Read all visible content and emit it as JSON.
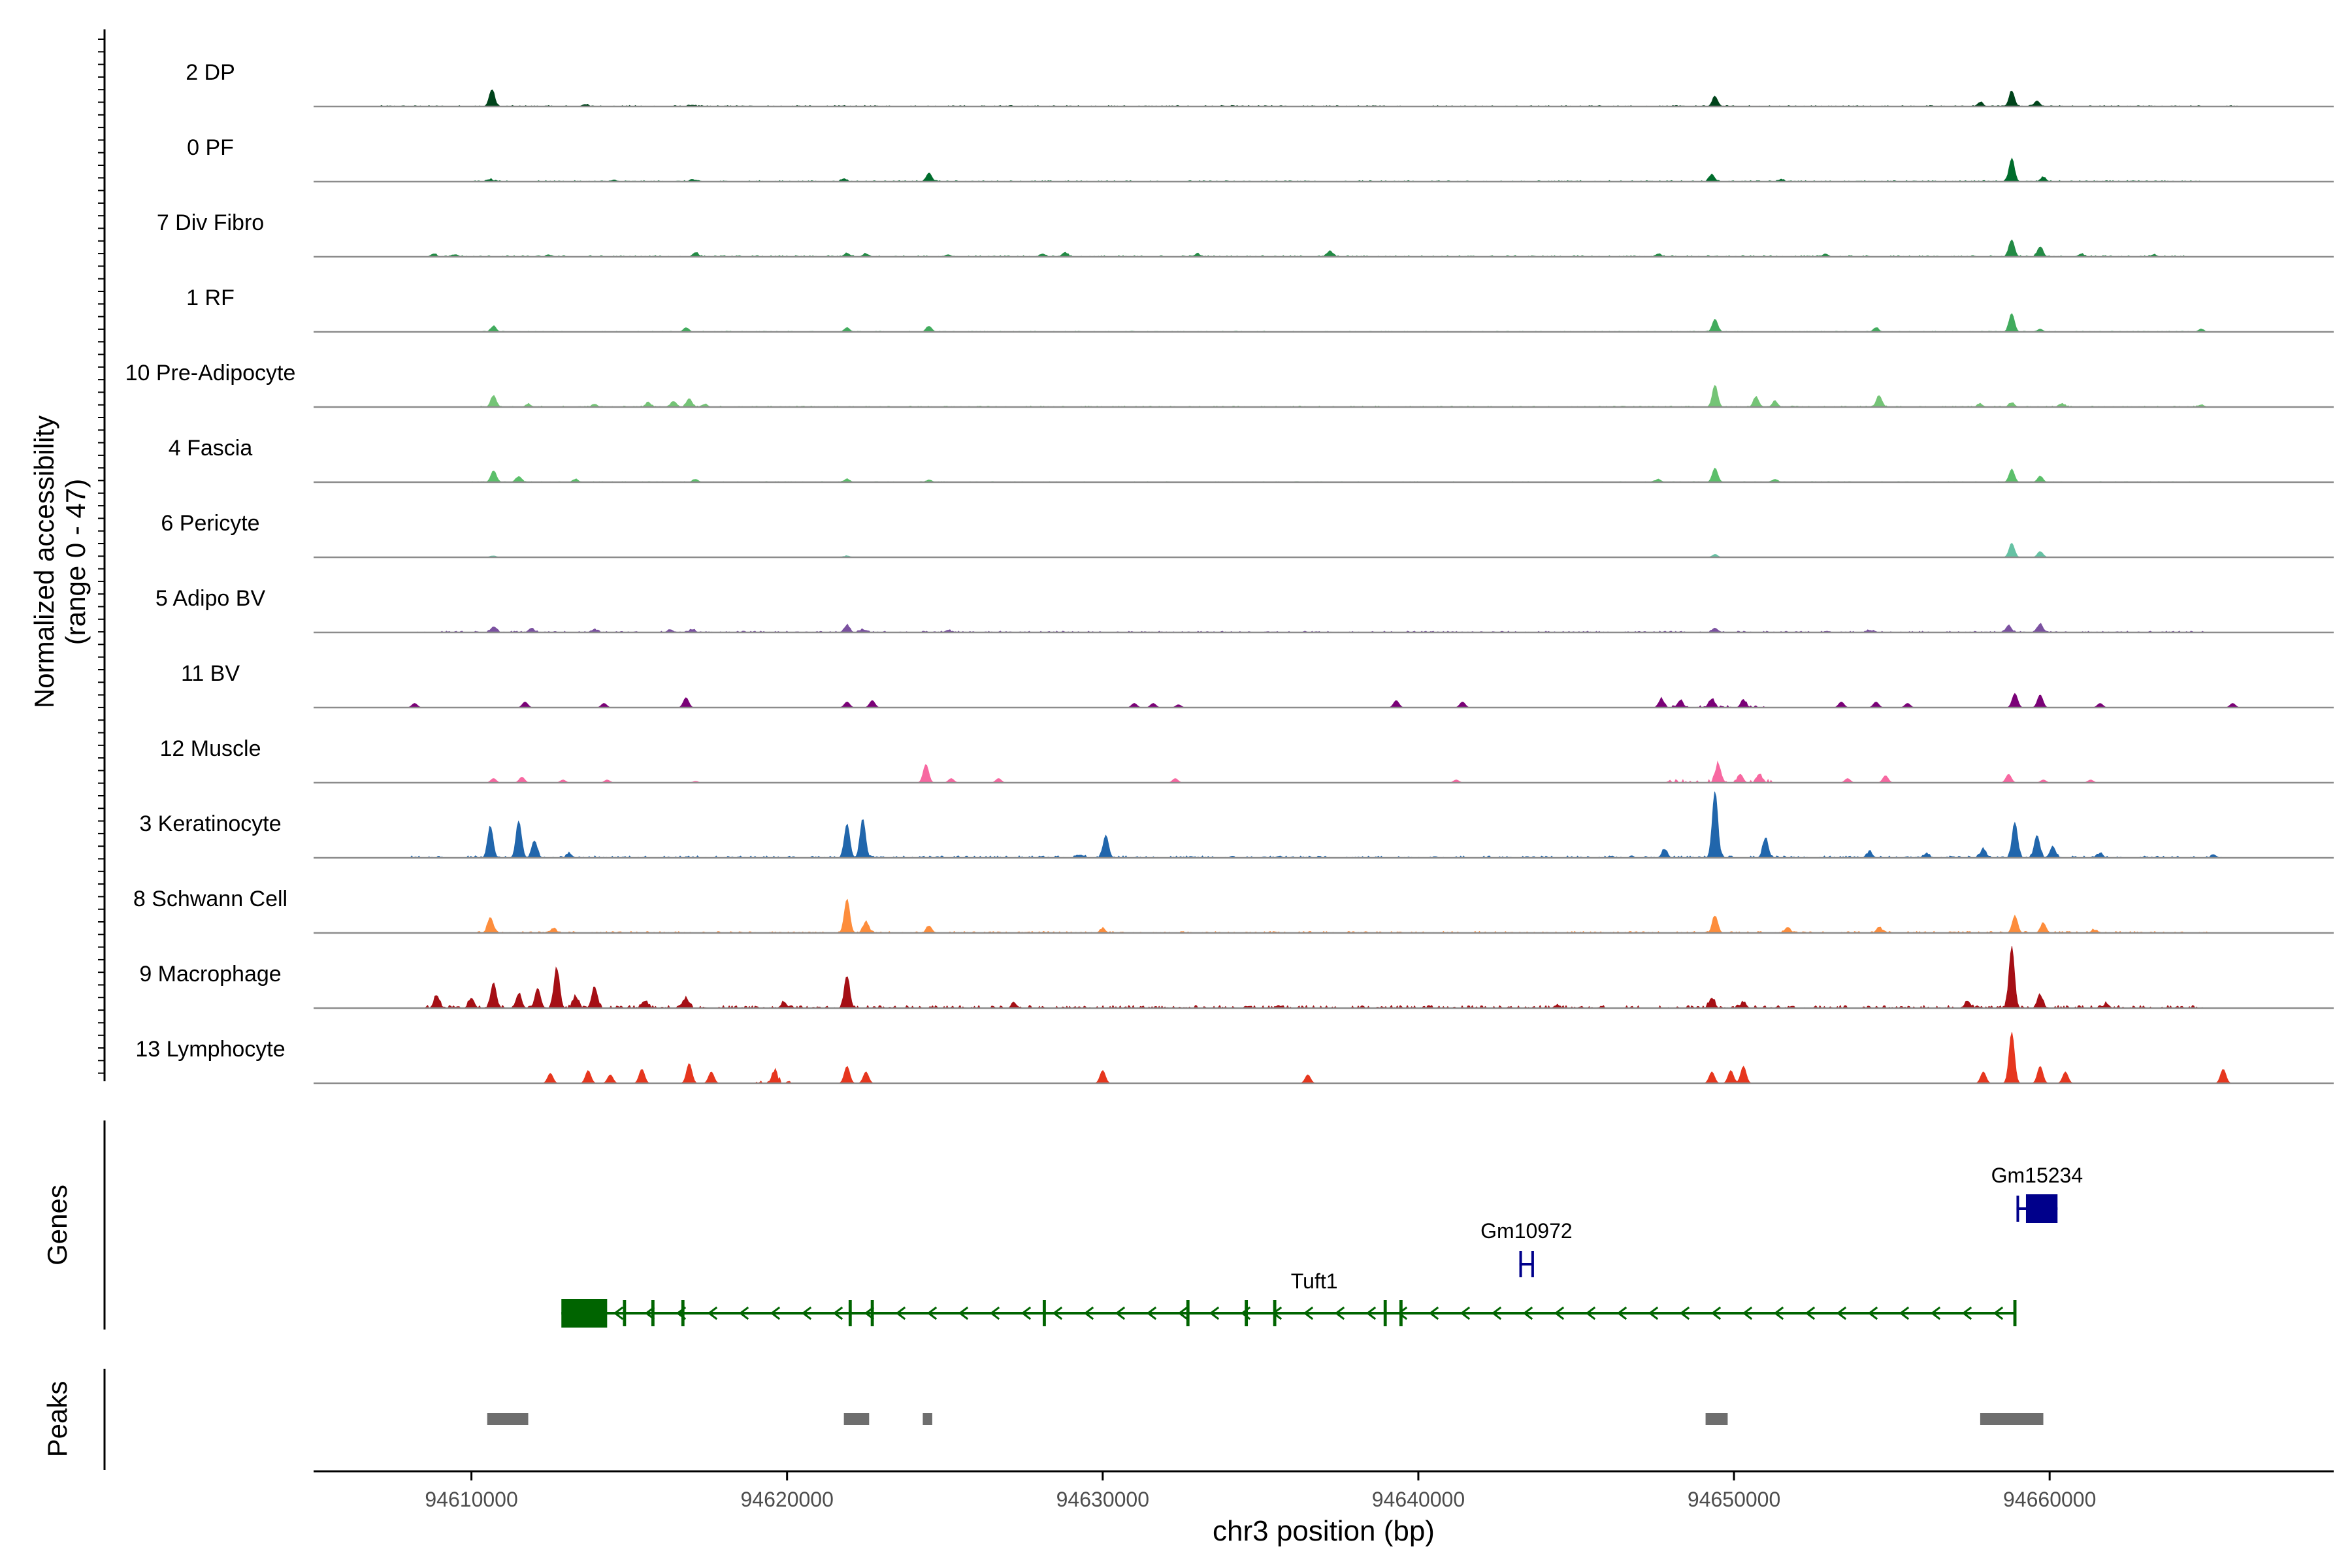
{
  "chart_data": {
    "type": "area",
    "title": "",
    "ylabel_line1": "Normalized accessibility",
    "ylabel_line2": "(range 0 - 47)",
    "xlabel": "chr3 position (bp)",
    "xlim": [
      94605000,
      94669000
    ],
    "ylim": [
      0,
      47
    ],
    "x_ticks": [
      {
        "value": 94610000,
        "label": "94610000"
      },
      {
        "value": 94620000,
        "label": "94620000"
      },
      {
        "value": 94630000,
        "label": "94630000"
      },
      {
        "value": 94640000,
        "label": "94640000"
      },
      {
        "value": 94650000,
        "label": "94650000"
      },
      {
        "value": 94660000,
        "label": "94660000"
      }
    ],
    "tracks": [
      {
        "label": "2 DP",
        "color": "#00441b",
        "peaks": [
          [
            94610650,
            12
          ],
          [
            94613600,
            1.5
          ],
          [
            94617000,
            1
          ],
          [
            94649400,
            7
          ],
          [
            94657800,
            3
          ],
          [
            94658800,
            11
          ],
          [
            94659600,
            4
          ]
        ],
        "noise": [
          94607000,
          94666000
        ],
        "noise_level": 0.8
      },
      {
        "label": "0 PF",
        "color": "#006d2c",
        "peaks": [
          [
            94610600,
            1.5
          ],
          [
            94614500,
            1
          ],
          [
            94617000,
            1.5
          ],
          [
            94621800,
            2
          ],
          [
            94624500,
            6
          ],
          [
            94649300,
            5
          ],
          [
            94651500,
            1.5
          ],
          [
            94658800,
            16
          ],
          [
            94659800,
            3
          ]
        ],
        "noise": [
          94610000,
          94665000
        ],
        "noise_level": 0.8
      },
      {
        "label": "7 Div Fibro",
        "color": "#238b45",
        "peaks": [
          [
            94608800,
            2
          ],
          [
            94609500,
            1.5
          ],
          [
            94612500,
            1
          ],
          [
            94617100,
            3
          ],
          [
            94621900,
            2.5
          ],
          [
            94622500,
            2
          ],
          [
            94625100,
            1.5
          ],
          [
            94628100,
            2
          ],
          [
            94628800,
            3
          ],
          [
            94633000,
            2
          ],
          [
            94637200,
            4
          ],
          [
            94647600,
            2
          ],
          [
            94652900,
            2
          ],
          [
            94658800,
            12
          ],
          [
            94659700,
            7
          ],
          [
            94661000,
            2
          ],
          [
            94663300,
            1.5
          ]
        ],
        "noise": [
          94608500,
          94664500
        ],
        "noise_level": 0.9
      },
      {
        "label": "1 RF",
        "color": "#41ab5d",
        "peaks": [
          [
            94610700,
            4
          ],
          [
            94616800,
            3
          ],
          [
            94621900,
            3
          ],
          [
            94624500,
            4
          ],
          [
            94649400,
            9
          ],
          [
            94654500,
            3
          ],
          [
            94658800,
            13
          ],
          [
            94659700,
            2
          ],
          [
            94664800,
            2
          ]
        ],
        "noise": [
          94610000,
          94665000
        ],
        "noise_level": 0.6
      },
      {
        "label": "10 Pre-Adipocyte",
        "color": "#74c476",
        "peaks": [
          [
            94610700,
            8
          ],
          [
            94611800,
            2
          ],
          [
            94615600,
            3
          ],
          [
            94616400,
            4
          ],
          [
            94616900,
            6
          ],
          [
            94617400,
            2
          ],
          [
            94613900,
            2
          ],
          [
            94649400,
            15
          ],
          [
            94650700,
            7
          ],
          [
            94651300,
            4
          ],
          [
            94654600,
            8
          ],
          [
            94657800,
            2
          ],
          [
            94658800,
            3
          ],
          [
            94660400,
            2
          ],
          [
            94664800,
            1.5
          ]
        ],
        "noise": [
          94610000,
          94665000
        ],
        "noise_level": 0.8
      },
      {
        "label": "4 Fascia",
        "color": "#5bbf6a",
        "peaks": [
          [
            94610700,
            8
          ],
          [
            94611500,
            4
          ],
          [
            94613300,
            2
          ],
          [
            94617100,
            2
          ],
          [
            94621900,
            2
          ],
          [
            94624500,
            1.5
          ],
          [
            94647600,
            2
          ],
          [
            94649400,
            10
          ],
          [
            94651300,
            2
          ],
          [
            94658800,
            9
          ],
          [
            94659700,
            4
          ]
        ],
        "noise": [
          94610000,
          94665000
        ],
        "noise_level": 0.5
      },
      {
        "label": "6 Pericyte",
        "color": "#66c2a4",
        "peaks": [
          [
            94610700,
            1
          ],
          [
            94621900,
            1
          ],
          [
            94649400,
            2
          ],
          [
            94658800,
            10
          ],
          [
            94659700,
            4
          ]
        ],
        "noise": [
          94610000,
          94665000
        ],
        "noise_level": 0.3
      },
      {
        "label": "5 Adipo BV",
        "color": "#7b51a0",
        "peaks": [
          [
            94610700,
            4
          ],
          [
            94611900,
            3
          ],
          [
            94613900,
            2
          ],
          [
            94616300,
            2
          ],
          [
            94617000,
            2
          ],
          [
            94621900,
            5
          ],
          [
            94622400,
            2
          ],
          [
            94625100,
            1.5
          ],
          [
            94649400,
            3
          ],
          [
            94654300,
            1.5
          ],
          [
            94658700,
            5
          ],
          [
            94659700,
            6
          ]
        ],
        "noise": [
          94608000,
          94665000
        ],
        "noise_level": 1.0
      },
      {
        "label": "11 BV",
        "color": "#7a0177",
        "peaks": [
          [
            94608200,
            3
          ],
          [
            94611700,
            4
          ],
          [
            94614200,
            3
          ],
          [
            94616800,
            7
          ],
          [
            94621900,
            4
          ],
          [
            94622700,
            5
          ],
          [
            94631000,
            3
          ],
          [
            94631600,
            3
          ],
          [
            94632400,
            2
          ],
          [
            94639300,
            5
          ],
          [
            94641400,
            4
          ],
          [
            94647700,
            6
          ],
          [
            94648300,
            5
          ],
          [
            94649300,
            6
          ],
          [
            94650300,
            5
          ],
          [
            94653400,
            4
          ],
          [
            94654500,
            4
          ],
          [
            94655500,
            3
          ],
          [
            94658900,
            10
          ],
          [
            94659700,
            9
          ],
          [
            94661600,
            3
          ],
          [
            94665800,
            3
          ]
        ],
        "noise": [
          94647500,
          94651000
        ],
        "noise_level": 1.5
      },
      {
        "label": "12 Muscle",
        "color": "#f768a1",
        "peaks": [
          [
            94610700,
            3
          ],
          [
            94611600,
            4
          ],
          [
            94612900,
            2
          ],
          [
            94614300,
            2
          ],
          [
            94617100,
            1
          ],
          [
            94624400,
            13
          ],
          [
            94625200,
            3
          ],
          [
            94626700,
            3
          ],
          [
            94632300,
            3
          ],
          [
            94641200,
            2
          ],
          [
            94649500,
            13
          ],
          [
            94650200,
            6
          ],
          [
            94650800,
            6
          ],
          [
            94653600,
            3
          ],
          [
            94654800,
            5
          ],
          [
            94658700,
            6
          ],
          [
            94659800,
            2
          ],
          [
            94661300,
            2
          ]
        ],
        "noise": [
          94647800,
          94651200
        ],
        "noise_level": 2.5
      },
      {
        "label": "3 Keratinocyte",
        "color": "#2166ac",
        "peaks": [
          [
            94610600,
            22
          ],
          [
            94611500,
            26
          ],
          [
            94612000,
            12
          ],
          [
            94613100,
            3
          ],
          [
            94621900,
            24
          ],
          [
            94622400,
            27
          ],
          [
            94629300,
            2
          ],
          [
            94630100,
            16
          ],
          [
            94647800,
            6
          ],
          [
            94649400,
            47
          ],
          [
            94651000,
            14
          ],
          [
            94654300,
            4
          ],
          [
            94656100,
            3
          ],
          [
            94657900,
            6
          ],
          [
            94658900,
            25
          ],
          [
            94659600,
            16
          ],
          [
            94660100,
            8
          ],
          [
            94661600,
            3
          ],
          [
            94665200,
            2
          ]
        ],
        "noise": [
          94608000,
          94666000
        ],
        "noise_level": 1.5
      },
      {
        "label": "8 Schwann Cell",
        "color": "#fd8d3c",
        "peaks": [
          [
            94610600,
            11
          ],
          [
            94612600,
            3
          ],
          [
            94621900,
            24
          ],
          [
            94622500,
            8
          ],
          [
            94624500,
            5
          ],
          [
            94630000,
            3
          ],
          [
            94649400,
            12
          ],
          [
            94651700,
            4
          ],
          [
            94654600,
            4
          ],
          [
            94658900,
            12
          ],
          [
            94659800,
            7
          ],
          [
            94661400,
            2
          ]
        ],
        "noise": [
          94610000,
          94665000
        ],
        "noise_level": 1.2
      },
      {
        "label": "9 Macrophage",
        "color": "#a50f15",
        "peaks": [
          [
            94608900,
            9
          ],
          [
            94610000,
            7
          ],
          [
            94610700,
            18
          ],
          [
            94611500,
            10
          ],
          [
            94612100,
            14
          ],
          [
            94612700,
            28
          ],
          [
            94613300,
            8
          ],
          [
            94613900,
            15
          ],
          [
            94615500,
            5
          ],
          [
            94616800,
            7
          ],
          [
            94619900,
            4
          ],
          [
            94621900,
            22
          ],
          [
            94627200,
            3
          ],
          [
            94644400,
            2
          ],
          [
            94649300,
            7
          ],
          [
            94650300,
            4
          ],
          [
            94657400,
            5
          ],
          [
            94658800,
            43
          ],
          [
            94659700,
            9
          ],
          [
            94661800,
            3
          ]
        ],
        "noise": [
          94608500,
          94665000
        ],
        "noise_level": 2.0
      },
      {
        "label": "13 Lymphocyte",
        "color": "#e6361e",
        "peaks": [
          [
            94612500,
            7
          ],
          [
            94613700,
            9
          ],
          [
            94614400,
            6
          ],
          [
            94615400,
            10
          ],
          [
            94616900,
            14
          ],
          [
            94617600,
            8
          ],
          [
            94619600,
            8
          ],
          [
            94621900,
            12
          ],
          [
            94622500,
            8
          ],
          [
            94630000,
            9
          ],
          [
            94636500,
            6
          ],
          [
            94649300,
            8
          ],
          [
            94649900,
            9
          ],
          [
            94650300,
            12
          ],
          [
            94657900,
            8
          ],
          [
            94658800,
            36
          ],
          [
            94659700,
            12
          ],
          [
            94660500,
            8
          ],
          [
            94665500,
            10
          ]
        ],
        "noise": [
          94618900,
          94620200
        ],
        "noise_level": 3.0
      }
    ],
    "genes_label": "Genes",
    "genes": [
      {
        "name": "Tuft1",
        "strand": "-",
        "start": 94612850,
        "end": 94658900,
        "color": "#006400",
        "exons": [
          [
            94612850,
            94614300
          ],
          [
            94614800,
            94614900
          ],
          [
            94615700,
            94615800
          ],
          [
            94616650,
            94616750
          ],
          [
            94621950,
            94622050
          ],
          [
            94622650,
            94622750
          ],
          [
            94628100,
            94628200
          ],
          [
            94632650,
            94632750
          ],
          [
            94634500,
            94634600
          ],
          [
            94635400,
            94635500
          ],
          [
            94638900,
            94639000
          ],
          [
            94639400,
            94639500
          ],
          [
            94658850,
            94658950
          ]
        ]
      },
      {
        "name": "Gm10972",
        "strand": "+",
        "start": 94643200,
        "end": 94643650,
        "color": "#00008b",
        "exons": [
          [
            94643200,
            94643260
          ],
          [
            94643580,
            94643650
          ]
        ]
      },
      {
        "name": "Gm15234",
        "strand": "+",
        "start": 94658950,
        "end": 94660250,
        "color": "#00008b",
        "exons": [
          [
            94658950,
            94659020
          ],
          [
            94659250,
            94660250
          ]
        ]
      }
    ],
    "peaks_label": "Peaks",
    "peak_regions": [
      [
        94610500,
        94611800
      ],
      [
        94621800,
        94622600
      ],
      [
        94624300,
        94624600
      ],
      [
        94649100,
        94649800
      ],
      [
        94657800,
        94659800
      ]
    ]
  }
}
